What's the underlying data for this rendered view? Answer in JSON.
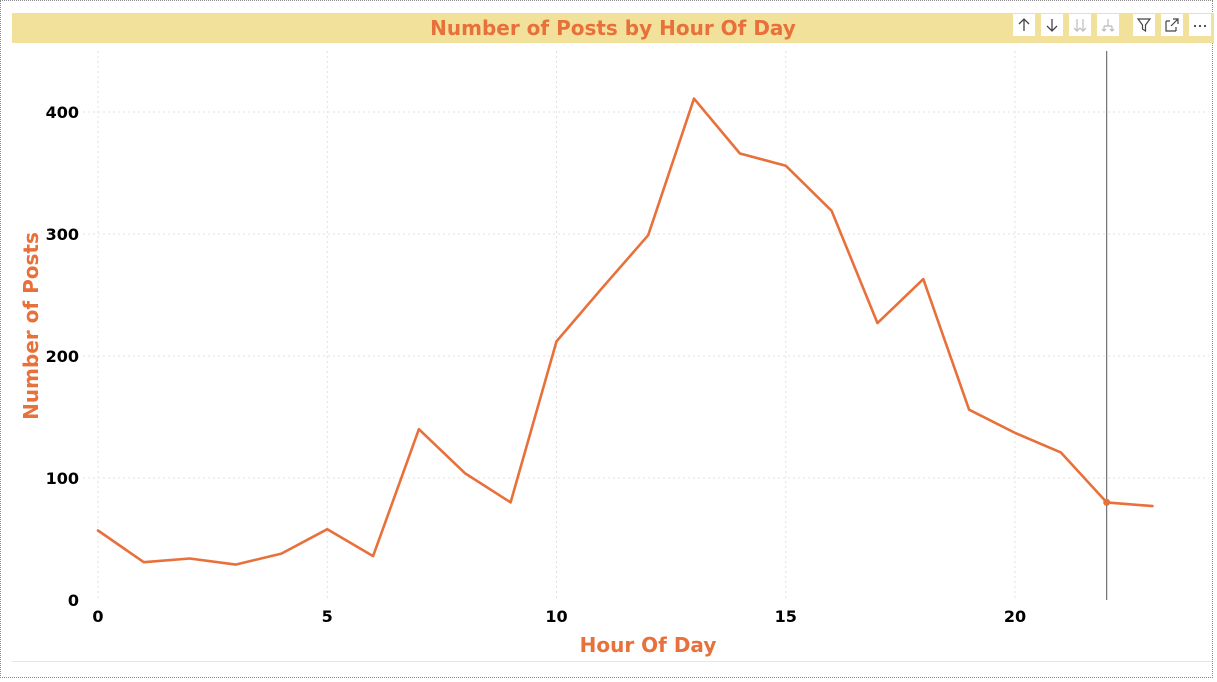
{
  "visual": {
    "title": "Number of Posts by Hour Of Day",
    "colors": {
      "line": "#e8703a",
      "title_bar": "#f2e19b",
      "title_text": "#e8703a",
      "axis_title": "#e8703a",
      "tick_text": "#000000",
      "gridline": "#e0e0e0",
      "reference_line": "#555555"
    }
  },
  "toolbar": {
    "buttons": [
      {
        "icon": "arrow-up-icon",
        "label": "Drill up",
        "enabled": true
      },
      {
        "icon": "arrow-down-icon",
        "label": "Drill down",
        "enabled": true
      },
      {
        "icon": "double-arrow-down-icon",
        "label": "Go to next level",
        "enabled": false
      },
      {
        "icon": "expand-hierarchy-icon",
        "label": "Expand all down one level",
        "enabled": false
      },
      {
        "icon": "filter-icon",
        "label": "Filter",
        "enabled": true
      },
      {
        "icon": "focus-mode-icon",
        "label": "Focus mode",
        "enabled": true
      },
      {
        "icon": "more-options-icon",
        "label": "More options",
        "enabled": true
      }
    ]
  },
  "chart_data": {
    "type": "line",
    "title": "Number of Posts by Hour Of Day",
    "xlabel": "Hour Of Day",
    "ylabel": "Number of Posts",
    "x": [
      0,
      1,
      2,
      3,
      4,
      5,
      6,
      7,
      8,
      9,
      10,
      11,
      12,
      13,
      14,
      15,
      16,
      17,
      18,
      19,
      20,
      21,
      22,
      23
    ],
    "series": [
      {
        "values": [
          57,
          31,
          34,
          29,
          38,
          58,
          36,
          140,
          104,
          80,
          212,
          256,
          299,
          411,
          366,
          356,
          319,
          227,
          263,
          156,
          137,
          121,
          80,
          77
        ]
      }
    ],
    "xticks": [
      "0",
      "5",
      "10",
      "15",
      "20"
    ],
    "yticks": [
      "0",
      "100",
      "200",
      "300",
      "400"
    ],
    "xlim": [
      -0.1,
      24.55
    ],
    "ylim": [
      0,
      450
    ],
    "grid": true,
    "legend": "none",
    "hover_x": 22
  }
}
